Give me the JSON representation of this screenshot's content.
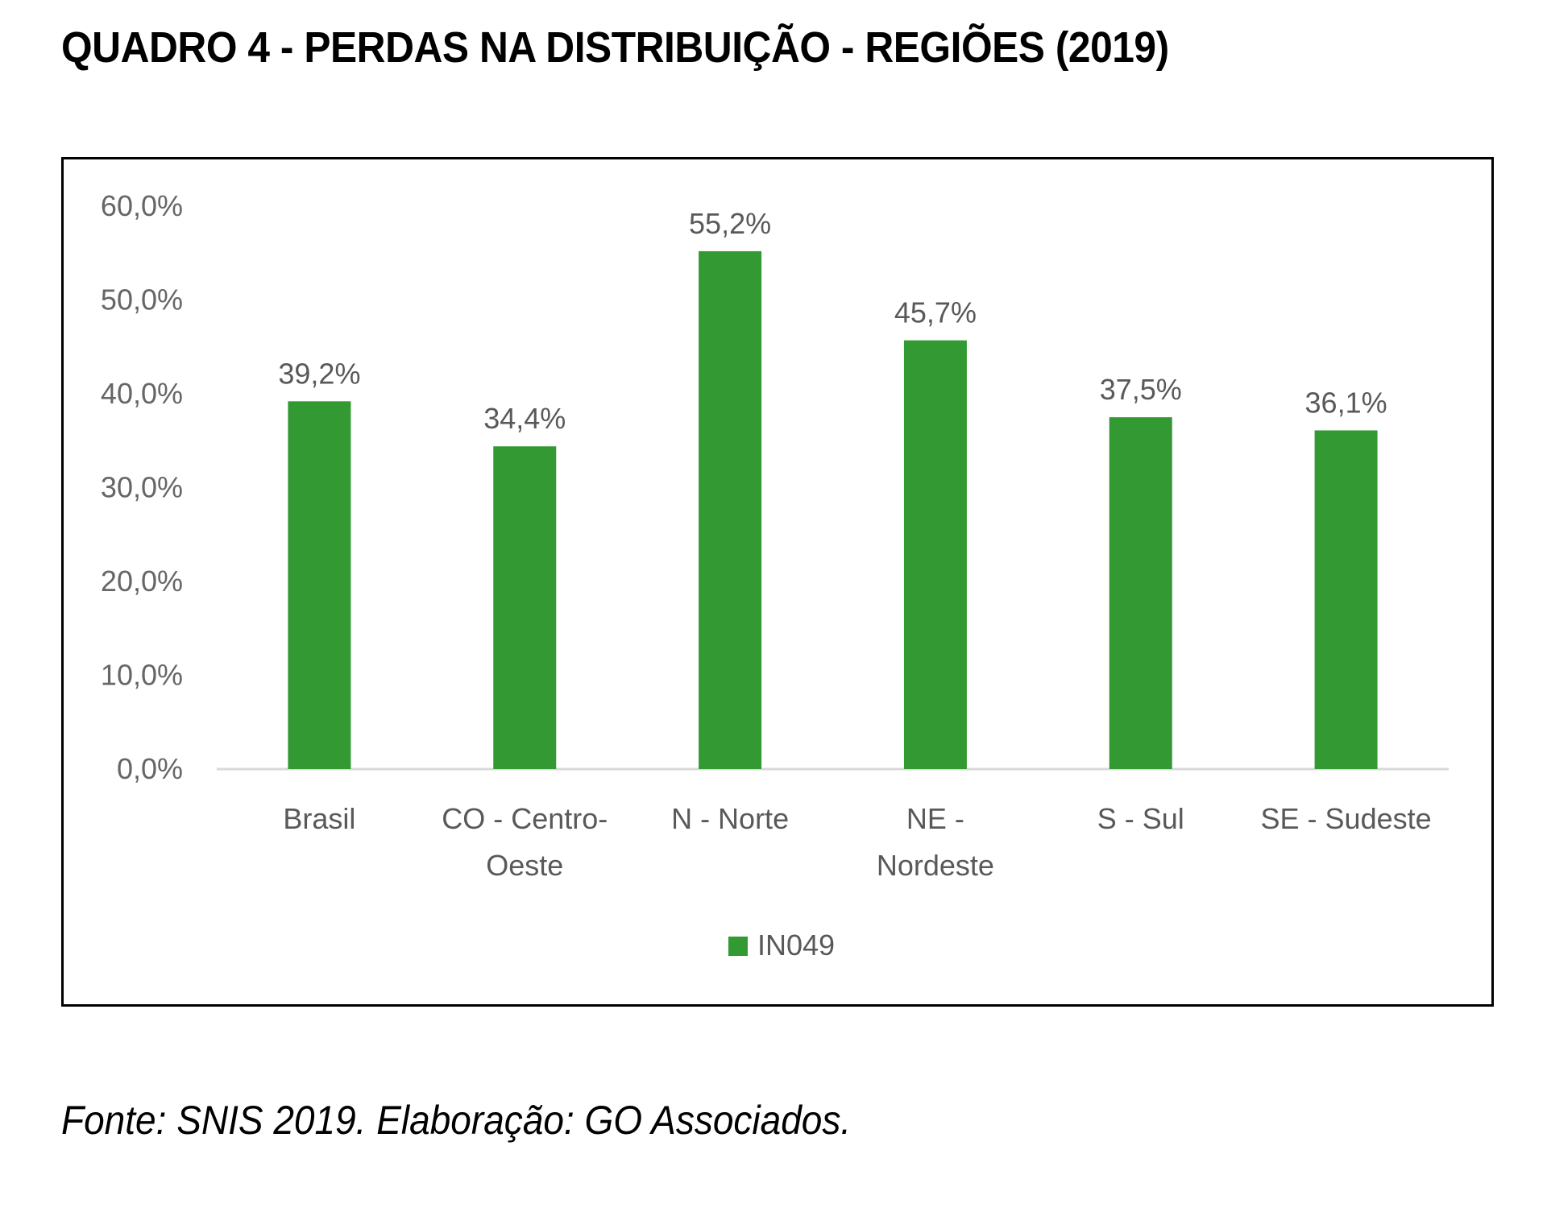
{
  "title": "QUADRO 4 - PERDAS NA DISTRIBUIÇÃO - REGIÕES (2019)",
  "source": "Fonte: SNIS 2019. Elaboração: GO Associados.",
  "chart_data": {
    "type": "bar",
    "title": "",
    "xlabel": "",
    "ylabel": "",
    "categories": [
      [
        "Brasil"
      ],
      [
        "CO - Centro-",
        "Oeste"
      ],
      [
        "N - Norte"
      ],
      [
        "NE -",
        "Nordeste"
      ],
      [
        "S - Sul"
      ],
      [
        "SE - Sudeste"
      ]
    ],
    "series": [
      {
        "name": "IN049",
        "values": [
          39.2,
          34.4,
          55.2,
          45.7,
          37.5,
          36.1
        ],
        "color": "#339933"
      }
    ],
    "data_labels": [
      "39,2%",
      "34,4%",
      "55,2%",
      "45,7%",
      "37,5%",
      "36,1%"
    ],
    "ylim": [
      0,
      60
    ],
    "yticks": [
      0,
      10,
      20,
      30,
      40,
      50,
      60
    ],
    "ytick_labels": [
      "0,0%",
      "10,0%",
      "20,0%",
      "30,0%",
      "40,0%",
      "50,0%",
      "60,0%"
    ],
    "grid": false,
    "legend": "bottom"
  }
}
